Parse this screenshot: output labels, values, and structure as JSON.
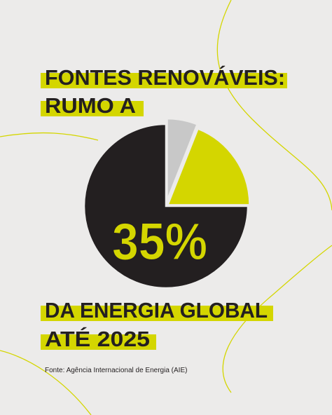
{
  "chart_data": {
    "type": "pie",
    "title_lines": [
      "FONTES RENOVÁVEIS:",
      "RUMO A"
    ],
    "center_label": "35%",
    "subtitle_lines": [
      "DA ENERGIA GLOBAL",
      "ATÉ 2025"
    ],
    "source": "Fonte: Agência Internacional de Energia (AIE)",
    "values": [
      6,
      19,
      75
    ],
    "colors": [
      "#c8c8c8",
      "#d4d600",
      "#231f20"
    ],
    "highlight_color": "#d4d600"
  }
}
